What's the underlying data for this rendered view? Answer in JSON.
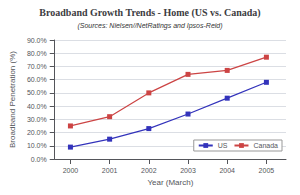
{
  "chart_data": {
    "type": "line",
    "title": "Broadband Growth Trends - Home (US vs. Canada)",
    "subtitle": "(Sources: Nielsen//NetRatings and Ipsos-Reid)",
    "xlabel": "Year (March)",
    "ylabel": "Broadband Penetration (%)",
    "x": [
      2000,
      2001,
      2002,
      2003,
      2004,
      2005
    ],
    "xlim": [
      1999.6,
      2005.5
    ],
    "xticks": [
      2000,
      2001,
      2002,
      2003,
      2004,
      2005
    ],
    "ylim": [
      0,
      90
    ],
    "yticks": [
      {
        "value": 0,
        "label": "0.0%"
      },
      {
        "value": 10,
        "label": "10.0%"
      },
      {
        "value": 20,
        "label": "20.0%"
      },
      {
        "value": 30,
        "label": "30.0%"
      },
      {
        "value": 40,
        "label": "40.0%"
      },
      {
        "value": 50,
        "label": "50.0%"
      },
      {
        "value": 60,
        "label": "60.0%"
      },
      {
        "value": 70,
        "label": "70.0%"
      },
      {
        "value": 80,
        "label": "80.0%"
      },
      {
        "value": 90,
        "label": "90.0%"
      }
    ],
    "series": [
      {
        "name": "US",
        "color": "#3333bb",
        "marker": "square",
        "values": [
          9,
          15,
          23,
          34,
          46,
          58
        ]
      },
      {
        "name": "Canada",
        "color": "#cc4444",
        "marker": "square",
        "values": [
          25,
          32,
          50,
          64,
          67,
          77
        ]
      }
    ],
    "grid": true,
    "legend": "lower right"
  }
}
